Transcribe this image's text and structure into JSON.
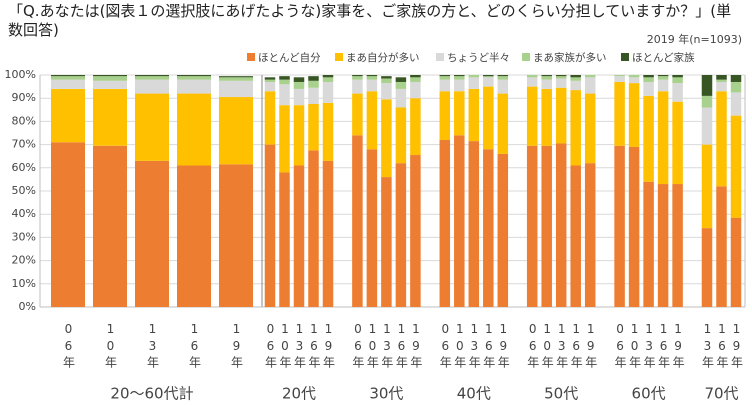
{
  "chart_data": {
    "type": "stacked_bar",
    "title": "「Q.あなたは(図表１の選択肢にあげたような)家事を、ご家族の方と、どのくらい分担していますか？」(単数回答)",
    "subtitle": "2019 年(n=1093)",
    "ylim": [
      0,
      100
    ],
    "yticks": [
      {
        "value": 0,
        "label": "0%"
      },
      {
        "value": 10,
        "label": "10%"
      },
      {
        "value": 20,
        "label": "20%"
      },
      {
        "value": 30,
        "label": "30%"
      },
      {
        "value": 40,
        "label": "40%"
      },
      {
        "value": 50,
        "label": "50%"
      },
      {
        "value": 60,
        "label": "60%"
      },
      {
        "value": 70,
        "label": "70%"
      },
      {
        "value": 80,
        "label": "80%"
      },
      {
        "value": 90,
        "label": "90%"
      },
      {
        "value": 100,
        "label": "100%"
      }
    ],
    "grid": true,
    "legend": "top-right",
    "series": [
      {
        "name": "ほとんど自分",
        "color": "#ED7D31"
      },
      {
        "name": "まあ自分が多い",
        "color": "#FFC000"
      },
      {
        "name": "ちょうど半々",
        "color": "#D9D9D9"
      },
      {
        "name": "まあ家族が多い",
        "color": "#A9D18E"
      },
      {
        "name": "ほとんど家族",
        "color": "#375623"
      }
    ],
    "groups": [
      {
        "name": "20～60代計",
        "categories": [
          "06年",
          "10年",
          "13年",
          "16年",
          "19年"
        ],
        "values": [
          [
            71,
            69.5,
            63,
            61,
            61.5
          ],
          [
            23,
            24.5,
            29,
            31,
            29
          ],
          [
            4,
            3.5,
            6,
            6,
            7
          ],
          [
            1.5,
            2,
            1.5,
            1.5,
            1.5
          ],
          [
            0.5,
            0.5,
            0.5,
            0.5,
            0.5
          ]
        ]
      },
      {
        "name": "20代",
        "categories": [
          "06年",
          "10年",
          "13年",
          "16年",
          "19年"
        ],
        "values": [
          [
            70,
            58,
            61,
            67.5,
            63
          ],
          [
            23,
            29,
            26,
            20,
            25
          ],
          [
            4,
            9,
            7,
            7,
            9
          ],
          [
            1,
            2,
            3,
            3,
            2
          ],
          [
            1,
            1.5,
            2,
            2,
            1
          ]
        ]
      },
      {
        "name": "30代",
        "categories": [
          "06年",
          "10年",
          "13年",
          "16年",
          "19年"
        ],
        "values": [
          [
            74,
            68,
            56,
            62,
            65.5
          ],
          [
            18,
            25,
            33.5,
            24,
            24.5
          ],
          [
            6,
            5,
            7,
            8,
            7
          ],
          [
            1.5,
            1.5,
            2,
            3,
            2
          ],
          [
            0.5,
            0.5,
            1,
            2,
            1
          ]
        ]
      },
      {
        "name": "40代",
        "categories": [
          "06年",
          "10年",
          "13年",
          "16年",
          "19年"
        ],
        "values": [
          [
            72,
            74,
            71.5,
            68,
            66
          ],
          [
            21,
            19,
            22.5,
            27,
            26
          ],
          [
            5,
            5,
            5,
            4,
            6
          ],
          [
            1.5,
            1.5,
            1,
            0.5,
            1.5
          ],
          [
            0.5,
            0.5,
            0,
            0.5,
            0.5
          ]
        ]
      },
      {
        "name": "50代",
        "categories": [
          "06年",
          "10年",
          "13年",
          "16年",
          "19年"
        ],
        "values": [
          [
            69.5,
            69.5,
            70.5,
            61,
            62
          ],
          [
            25.5,
            24.5,
            24,
            32.5,
            30
          ],
          [
            4,
            4,
            4,
            4,
            7
          ],
          [
            1,
            1.5,
            1,
            1.5,
            1
          ],
          [
            0,
            0.5,
            0.5,
            1,
            0
          ]
        ]
      },
      {
        "name": "60代",
        "categories": [
          "06年",
          "10年",
          "13年",
          "16年",
          "19年"
        ],
        "values": [
          [
            69.5,
            69,
            54,
            53,
            53
          ],
          [
            27.5,
            27.5,
            37,
            40,
            35.5
          ],
          [
            2.5,
            2.5,
            6,
            5,
            8
          ],
          [
            0.5,
            1,
            2,
            1.5,
            2.5
          ],
          [
            0,
            0,
            1,
            0.5,
            1
          ]
        ]
      },
      {
        "name": "70代",
        "categories": [
          "13年",
          "16年",
          "19年"
        ],
        "values": [
          [
            34,
            52,
            38.5
          ],
          [
            36,
            41,
            44
          ],
          [
            16,
            4,
            10
          ],
          [
            5,
            1,
            4.5
          ],
          [
            9,
            2,
            3
          ]
        ]
      }
    ]
  }
}
